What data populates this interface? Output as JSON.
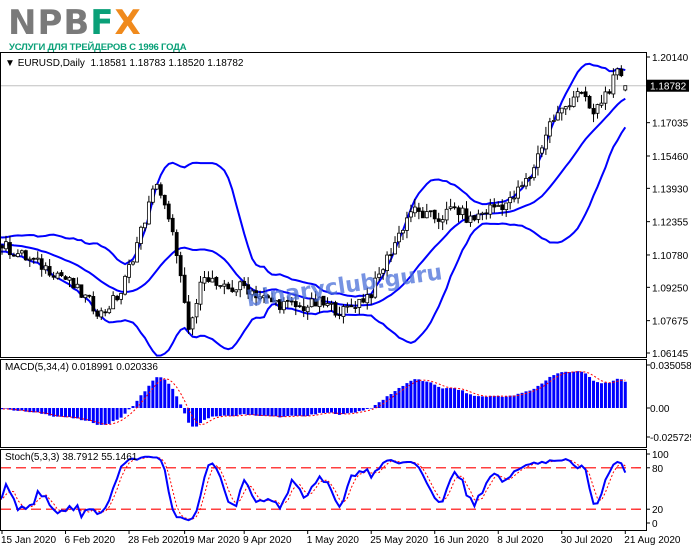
{
  "logo": {
    "brand_gray": "NPB",
    "brand_green": "F",
    "brand_orange": "X",
    "tagline": "УСЛУГИ ДЛЯ ТРЕЙДЕРОВ С 1996 ГОДА"
  },
  "watermark": "binaryclub.guru",
  "header": {
    "symbol": "EURUSD,Daily",
    "open": "1.18581",
    "high": "1.18783",
    "low": "1.18520",
    "close": "1.18782"
  },
  "macd_header": {
    "label": "MACD(5,34,4)",
    "main": "0.018991",
    "signal": "0.020336"
  },
  "stoch_header": {
    "label": "Stoch(5,3,3)",
    "k": "38.7912",
    "d": "55.1461"
  },
  "colors": {
    "bands": "#0000ff",
    "histogram": "#0000ff",
    "signal": "#ff0000",
    "stoch_main": "#0000ff",
    "levels": "#ff0000",
    "bull_body": "#ffffff",
    "bear_body": "#000000"
  },
  "chart_data": [
    {
      "type": "candlestick",
      "symbol": "EURUSD",
      "timeframe": "Daily",
      "indicator": "Bollinger Bands",
      "ylim": [
        1.06145,
        1.2014
      ],
      "y_ticks": [
        "1.20140",
        "1.18782",
        "1.17035",
        "1.15460",
        "1.13930",
        "1.12355",
        "1.10780",
        "1.09250",
        "1.07675",
        "1.06145"
      ],
      "current_price": "1.18782",
      "x_ticks": [
        "15 Jan 2020",
        "6 Feb 2020",
        "28 Feb 2020",
        "19 Mar 2020",
        "9 Apr 2020",
        "1 May 2020",
        "25 May 2020",
        "16 Jun 2020",
        "8 Jul 2020",
        "30 Jul 2020",
        "21 Aug 2020"
      ],
      "x_tick_dates": [
        "2020-01-15",
        "2020-02-06",
        "2020-02-28",
        "2020-03-19",
        "2020-04-09",
        "2020-05-01",
        "2020-05-25",
        "2020-06-16",
        "2020-07-08",
        "2020-07-30",
        "2020-08-21"
      ],
      "close_points": [
        [
          "2020-01-15",
          1.1125
        ],
        [
          "2020-01-24",
          1.1054
        ],
        [
          "2020-02-05",
          1.0983
        ],
        [
          "2020-02-19",
          1.08
        ],
        [
          "2020-02-26",
          1.09
        ],
        [
          "2020-03-04",
          1.119
        ],
        [
          "2020-03-10",
          1.143
        ],
        [
          "2020-03-17",
          1.11
        ],
        [
          "2020-03-20",
          1.07
        ],
        [
          "2020-03-26",
          1.1
        ],
        [
          "2020-04-01",
          1.091
        ],
        [
          "2020-04-09",
          1.093
        ],
        [
          "2020-04-17",
          1.086
        ],
        [
          "2020-04-29",
          1.083
        ],
        [
          "2020-05-06",
          1.085
        ],
        [
          "2020-05-14",
          1.081
        ],
        [
          "2020-05-25",
          1.09
        ],
        [
          "2020-06-01",
          1.11
        ],
        [
          "2020-06-08",
          1.129
        ],
        [
          "2020-06-12",
          1.126
        ],
        [
          "2020-06-17",
          1.125
        ],
        [
          "2020-06-23",
          1.13
        ],
        [
          "2020-06-29",
          1.124
        ],
        [
          "2020-07-06",
          1.13
        ],
        [
          "2020-07-13",
          1.133
        ],
        [
          "2020-07-20",
          1.145
        ],
        [
          "2020-07-27",
          1.17
        ],
        [
          "2020-07-31",
          1.178
        ],
        [
          "2020-08-05",
          1.186
        ],
        [
          "2020-08-11",
          1.174
        ],
        [
          "2020-08-14",
          1.184
        ],
        [
          "2020-08-19",
          1.193
        ],
        [
          "2020-08-21",
          1.18782
        ]
      ]
    },
    {
      "type": "bar",
      "indicator": "MACD(5,34,4)",
      "ylim": [
        -0.025725,
        0.035058
      ],
      "y_ticks": [
        "0.035058",
        "0.00",
        "-0.025725"
      ]
    },
    {
      "type": "line",
      "indicator": "Stoch(5,3,3)",
      "ylim": [
        0,
        100
      ],
      "y_ticks": [
        "100",
        "80",
        "20",
        "0"
      ],
      "levels": [
        80,
        20
      ]
    }
  ]
}
